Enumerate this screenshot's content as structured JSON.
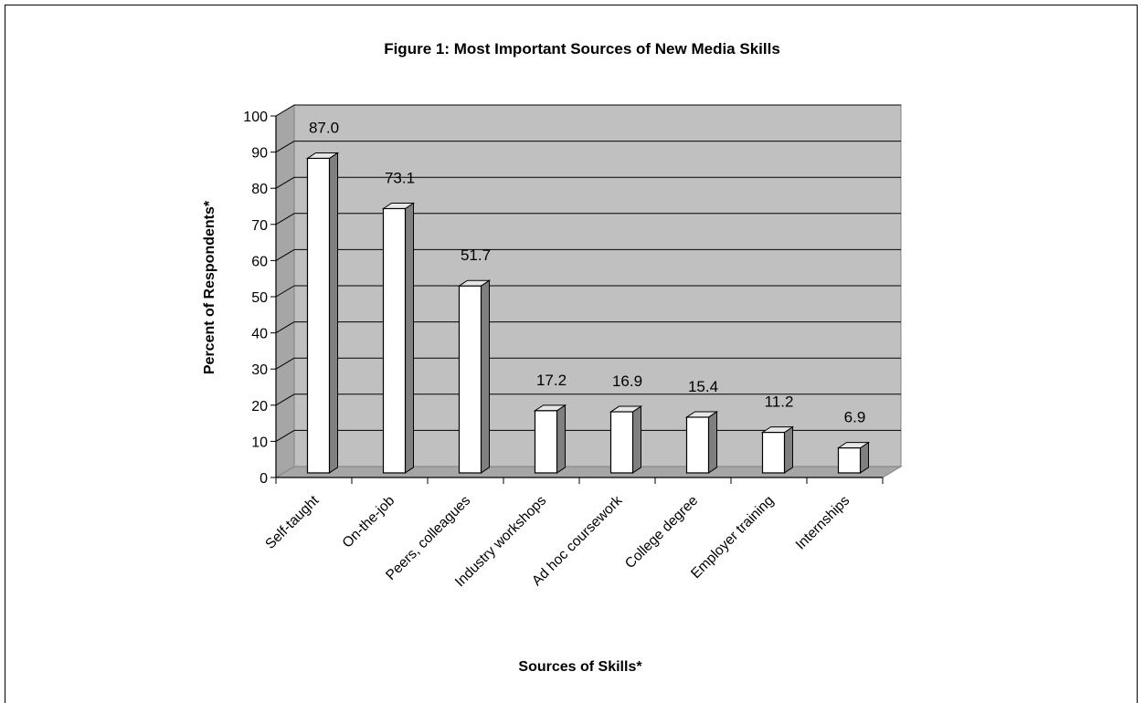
{
  "chart_data": {
    "type": "bar",
    "title": "Figure 1: Most Important Sources of New Media Skills",
    "xlabel": "Sources of Skills*",
    "ylabel": "Percent of Respondents*",
    "ylim": [
      0,
      100
    ],
    "ytick_step": 10,
    "grid": true,
    "three_d": true,
    "categories": [
      "Self-taught",
      "On-the-job",
      "Peers, colleagues",
      "Industry workshops",
      "Ad hoc coursework",
      "College degree",
      "Employer training",
      "Internships"
    ],
    "values": [
      87.0,
      73.1,
      51.7,
      17.2,
      16.9,
      15.4,
      11.2,
      6.9
    ],
    "value_labels": [
      "87.0",
      "73.1",
      "51.7",
      "17.2",
      "16.9",
      "15.4",
      "11.2",
      "6.9"
    ],
    "colors": {
      "wall": "#c0c0c0",
      "floor": "#a6a6a6",
      "bar_front": "#ffffff",
      "bar_side": "#808080",
      "bar_top": "#e6e6e6",
      "grid": "#000000"
    }
  }
}
